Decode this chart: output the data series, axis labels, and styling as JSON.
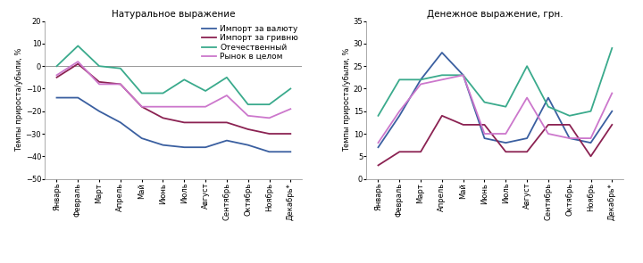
{
  "months": [
    "Январь",
    "Февраль",
    "Март",
    "Апрель",
    "Май",
    "Июнь",
    "Июль",
    "Август",
    "Сентябрь",
    "Октябрь",
    "Ноябрь",
    "Декабрь*"
  ],
  "left_title": "Натуральное выражение",
  "right_title": "Денежное выражение, грн.",
  "ylabel": "Темпы прироста/убыли, %",
  "legend_labels": [
    "Импорт за валюту",
    "Импорт за гривню",
    "Отечественный",
    "Рынок в целом"
  ],
  "colors": [
    "#3a5fa0",
    "#8b2252",
    "#3aaa8c",
    "#cc77cc"
  ],
  "left_data": {
    "import_val": [
      -14,
      -14,
      -20,
      -25,
      -32,
      -35,
      -36,
      -36,
      -33,
      -35,
      -38,
      -38
    ],
    "import_grn": [
      -5,
      1,
      -7,
      -8,
      -18,
      -23,
      -25,
      -25,
      -25,
      -28,
      -30,
      -30
    ],
    "domestic": [
      0,
      9,
      0,
      -1,
      -12,
      -12,
      -6,
      -11,
      -5,
      -17,
      -17,
      -10
    ],
    "market": [
      -4,
      2,
      -8,
      -8,
      -18,
      -18,
      -18,
      -18,
      -13,
      -22,
      -23,
      -19
    ]
  },
  "right_data": {
    "import_val": [
      7,
      14,
      22,
      28,
      23,
      9,
      8,
      9,
      18,
      9,
      8,
      15
    ],
    "import_grn": [
      3,
      6,
      6,
      14,
      12,
      12,
      6,
      6,
      12,
      12,
      5,
      12
    ],
    "domestic": [
      14,
      22,
      22,
      23,
      23,
      17,
      16,
      25,
      16,
      14,
      15,
      29
    ],
    "market": [
      8,
      15,
      21,
      22,
      23,
      10,
      10,
      18,
      10,
      9,
      9,
      19
    ]
  },
  "left_ylim": [
    -50,
    20
  ],
  "right_ylim": [
    0,
    35
  ],
  "left_yticks": [
    -50,
    -40,
    -30,
    -20,
    -10,
    0,
    10,
    20
  ],
  "right_yticks": [
    0,
    5,
    10,
    15,
    20,
    25,
    30,
    35
  ],
  "tick_fontsize": 6,
  "label_fontsize": 6,
  "title_fontsize": 7.5,
  "legend_fontsize": 6.5
}
